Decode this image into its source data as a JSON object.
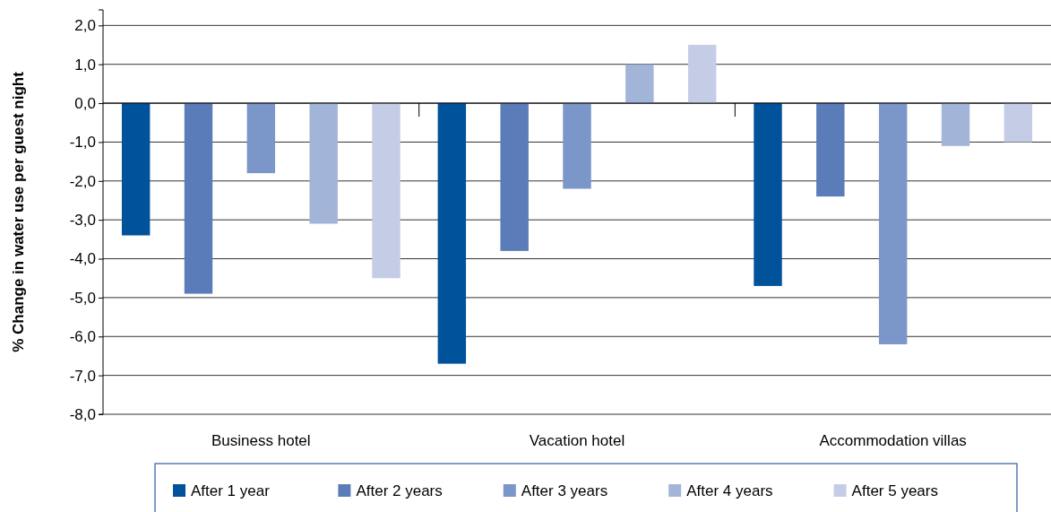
{
  "chart_data": {
    "type": "bar",
    "ylabel": "% Change in water use per guest night",
    "categories": [
      "Business hotel",
      "Vacation hotel",
      "Accommodation villas"
    ],
    "series": [
      {
        "name": "After 1 year",
        "color": "#00529b",
        "values": [
          -3.4,
          -6.7,
          -4.7
        ]
      },
      {
        "name": "After 2 years",
        "color": "#5a7cb8",
        "values": [
          -4.9,
          -3.8,
          -2.4
        ]
      },
      {
        "name": "After 3 years",
        "color": "#7b96c8",
        "values": [
          -1.8,
          -2.2,
          -6.2
        ]
      },
      {
        "name": "After 4 years",
        "color": "#a3b4d9",
        "values": [
          -3.1,
          1.0,
          -1.1
        ]
      },
      {
        "name": "After 5 years",
        "color": "#c5cde6",
        "values": [
          -4.5,
          1.5,
          -1.0
        ]
      }
    ],
    "ylim": [
      -8,
      2.4
    ],
    "yticks": [
      {
        "value": -8,
        "label": "-8,0"
      },
      {
        "value": -7,
        "label": "-7,0"
      },
      {
        "value": -6,
        "label": "-6,0"
      },
      {
        "value": -5,
        "label": "-5,0"
      },
      {
        "value": -4,
        "label": "-4,0"
      },
      {
        "value": -3,
        "label": "-3,0"
      },
      {
        "value": -2,
        "label": "-2,0"
      },
      {
        "value": -1,
        "label": "-1,0"
      },
      {
        "value": 0,
        "label": "0,0"
      },
      {
        "value": 1,
        "label": "1,0"
      },
      {
        "value": 2,
        "label": "2,0"
      }
    ],
    "grid": "y",
    "legend": "bottom"
  }
}
